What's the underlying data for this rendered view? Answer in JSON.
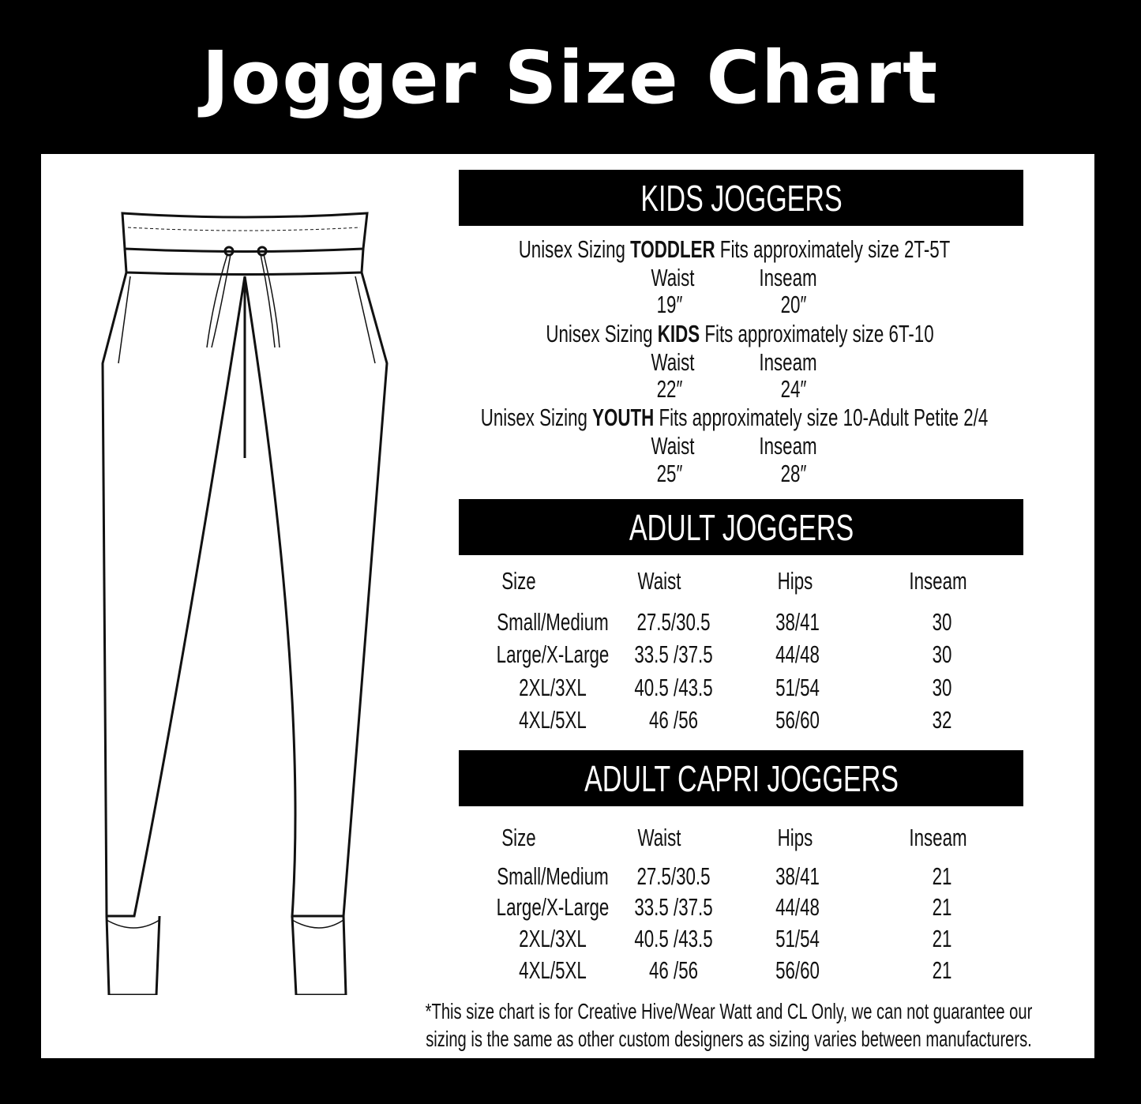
{
  "title": "Jogger Size Chart",
  "kids": {
    "heading": "KIDS JOGGERS",
    "groups": [
      {
        "prefix": "Unisex Sizing",
        "bold": "TODDLER",
        "suffix": "Fits approximately size 2T-5T",
        "waist_label": "Waist",
        "inseam_label": "Inseam",
        "waist": "19″",
        "inseam": "20″"
      },
      {
        "prefix": "Unisex Sizing",
        "bold": "KIDS",
        "suffix": "Fits approximately size 6T-10",
        "waist_label": "Waist",
        "inseam_label": "Inseam",
        "waist": "22″",
        "inseam": "24″"
      },
      {
        "prefix": "Unisex Sizing",
        "bold": "YOUTH",
        "suffix": "Fits approximately size 10-Adult Petite 2/4",
        "waist_label": "Waist",
        "inseam_label": "Inseam",
        "waist": "25″",
        "inseam": "28″"
      }
    ]
  },
  "adult": {
    "heading": "ADULT JOGGERS",
    "columns": [
      "Size",
      "Waist",
      "Hips",
      "Inseam"
    ],
    "rows": [
      [
        "Small/Medium",
        "27.5/30.5",
        "38/41",
        "30"
      ],
      [
        "Large/X-Large",
        "33.5 /37.5",
        "44/48",
        "30"
      ],
      [
        "2XL/3XL",
        "40.5 /43.5",
        "51/54",
        "30"
      ],
      [
        "4XL/5XL",
        "46 /56",
        "56/60",
        "32"
      ]
    ]
  },
  "capri": {
    "heading": "ADULT CAPRI JOGGERS",
    "columns": [
      "Size",
      "Waist",
      "Hips",
      "Inseam"
    ],
    "rows": [
      [
        "Small/Medium",
        "27.5/30.5",
        "38/41",
        "21"
      ],
      [
        "Large/X-Large",
        "33.5 /37.5",
        "44/48",
        "21"
      ],
      [
        "2XL/3XL",
        "40.5 /43.5",
        "51/54",
        "21"
      ],
      [
        "4XL/5XL",
        "46 /56",
        "56/60",
        "21"
      ]
    ]
  },
  "footer": {
    "line1": "*This size chart is for Creative Hive/Wear Watt and CL Only, we can not guarantee our",
    "line2": "sizing is the same as other custom designers as sizing varies  between manufacturers."
  }
}
